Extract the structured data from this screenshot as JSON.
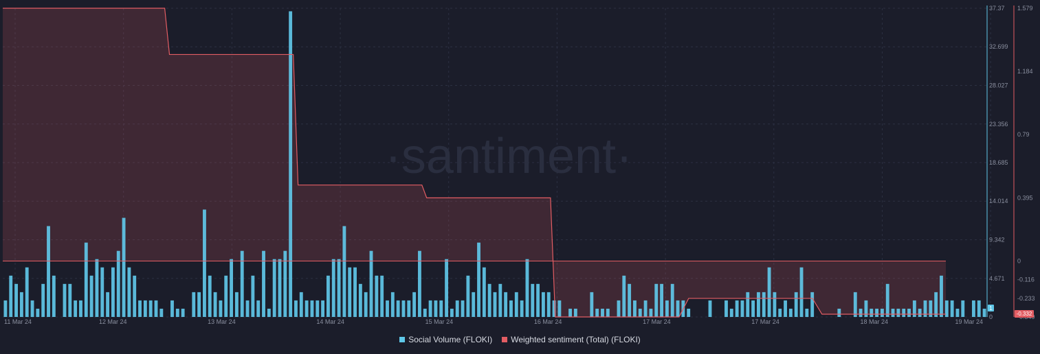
{
  "chart_data": {
    "type": "bar",
    "watermark": "·santiment·",
    "x_ticks": [
      "11 Mar 24",
      "12 Mar 24",
      "13 Mar 24",
      "14 Mar 24",
      "15 Mar 24",
      "16 Mar 24",
      "17 Mar 24",
      "17 Mar 24",
      "18 Mar 24",
      "19 Mar 24"
    ],
    "y_left_ticks": [
      "37.37",
      "32.699",
      "28.027",
      "23.356",
      "18.685",
      "14.014",
      "9.342",
      "4.671",
      "0"
    ],
    "y_right_ticks": [
      "1.579",
      "1.184",
      "0.79",
      "0.395",
      "0",
      "-0.116",
      "-0.233",
      "-0.349"
    ],
    "ylim_left": [
      0,
      37.37
    ],
    "ylim_right": [
      -0.349,
      1.579
    ],
    "current_values": {
      "social_volume": "1",
      "weighted_sentiment": "-0.332"
    },
    "series": [
      {
        "name": "Social Volume (FLOKI)",
        "color": "#5fc7e8",
        "values": [
          2,
          5,
          4,
          3,
          6,
          2,
          1,
          4,
          11,
          5,
          0,
          4,
          4,
          2,
          2,
          9,
          5,
          7,
          6,
          3,
          6,
          8,
          12,
          6,
          5,
          2,
          2,
          2,
          2,
          1,
          0,
          2,
          1,
          1,
          0,
          3,
          3,
          13,
          5,
          3,
          2,
          5,
          7,
          3,
          8,
          2,
          5,
          2,
          8,
          1,
          7,
          7,
          8,
          37,
          2,
          3,
          2,
          2,
          2,
          2,
          5,
          7,
          7,
          11,
          6,
          6,
          4,
          3,
          8,
          5,
          5,
          2,
          3,
          2,
          2,
          2,
          3,
          8,
          1,
          2,
          2,
          2,
          7,
          1,
          2,
          2,
          5,
          3,
          9,
          6,
          4,
          3,
          4,
          3,
          2,
          3,
          2,
          7,
          4,
          4,
          3,
          3,
          2,
          2,
          0,
          1,
          1,
          0,
          0,
          3,
          1,
          1,
          1,
          0,
          2,
          5,
          4,
          2,
          1,
          2,
          1,
          4,
          4,
          2,
          4,
          2,
          2,
          1,
          0,
          0,
          0,
          2,
          0,
          0,
          2,
          1,
          2,
          2,
          3,
          2,
          3,
          3,
          6,
          3,
          1,
          2,
          1,
          3,
          6,
          1,
          3,
          0,
          0,
          0,
          0,
          1,
          0,
          0,
          3,
          1,
          2,
          1,
          1,
          1,
          4,
          1,
          1,
          1,
          1,
          2,
          1,
          2,
          2,
          3,
          5,
          2,
          2,
          1,
          2,
          0,
          2,
          2,
          1
        ],
        "missing_index": 108
      },
      {
        "name": "Weighted sentiment (Total) (FLOKI)",
        "color": "#e35d63",
        "x": [
          0,
          34,
          35,
          61,
          62,
          88,
          89,
          115,
          116,
          142,
          144,
          198
        ],
        "values": [
          1.579,
          1.579,
          1.29,
          1.29,
          0.475,
          0.475,
          0.395,
          0.395,
          -0.349,
          -0.349,
          -0.233,
          -0.332
        ],
        "step_points": [
          [
            0,
            1.579
          ],
          [
            34,
            1.579
          ],
          [
            35,
            1.29
          ],
          [
            61,
            1.29
          ],
          [
            62,
            0.475
          ],
          [
            88,
            0.475
          ],
          [
            89,
            0.395
          ],
          [
            115,
            0.395
          ],
          [
            116,
            -0.349
          ],
          [
            142,
            -0.349
          ],
          [
            144,
            -0.233
          ],
          [
            170,
            -0.233
          ],
          [
            172,
            -0.332
          ],
          [
            198,
            -0.332
          ]
        ]
      }
    ],
    "legend": [
      "Social Volume (FLOKI)",
      "Weighted sentiment (Total) (FLOKI)"
    ],
    "legend_position": "bottom-center",
    "grid": true
  }
}
